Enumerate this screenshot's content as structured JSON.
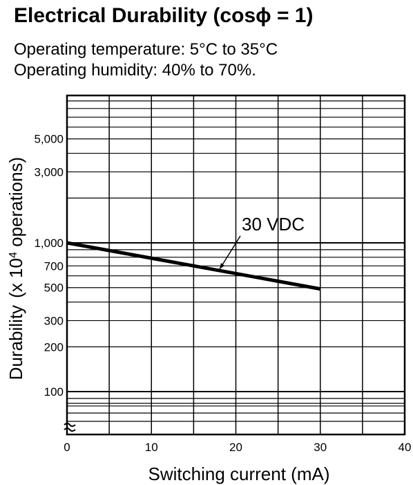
{
  "title": "Electrical Durability (cosϕ = 1)",
  "conditions": {
    "temperature": "Operating temperature: 5°C to 35°C",
    "humidity": "Operating humidity: 40% to 70%."
  },
  "chart_data": {
    "type": "line",
    "xlabel": "Switching current (mA)",
    "ylabel": "Durability",
    "ylabel_unit_prefix": "(x 10",
    "ylabel_unit_exp": "4",
    "ylabel_unit_suffix": " operations)",
    "xlim": [
      0,
      40
    ],
    "x_ticks": [
      "0",
      "10",
      "20",
      "30",
      "40"
    ],
    "y_scale": "log",
    "y_ticks": [
      "5,000",
      "3,000",
      "1,000",
      "700",
      "500",
      "300",
      "200",
      "100"
    ],
    "grid": true,
    "series": [
      {
        "name": "30 VDC",
        "x": [
          0,
          30
        ],
        "y": [
          1000,
          490
        ]
      }
    ],
    "annotation": "30 VDC"
  }
}
